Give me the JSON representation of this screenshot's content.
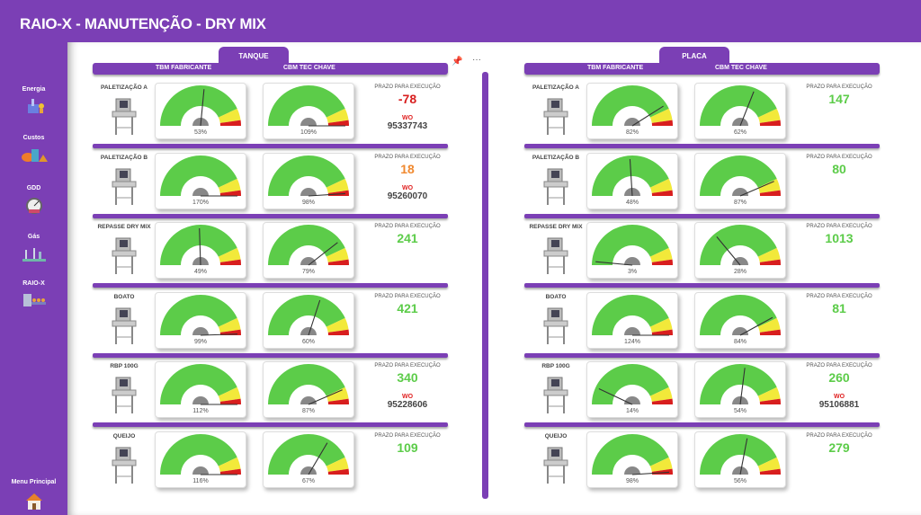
{
  "title": "RAIO-X - MANUTENÇÃO - DRY MIX",
  "nav": [
    {
      "label": "Energia",
      "icon": "energy-icon"
    },
    {
      "label": "Custos",
      "icon": "costs-icon"
    },
    {
      "label": "GDD",
      "icon": "speedometer-icon"
    },
    {
      "label": "Gás",
      "icon": "gas-plant-icon"
    },
    {
      "label": "RAIO-X",
      "icon": "xray-machine-icon"
    }
  ],
  "menu": {
    "label": "Menu Principal",
    "icon": "house-icon"
  },
  "colors": {
    "purple": "#7b3fb5",
    "green": "#5ccc49",
    "yellow": "#f2e93a",
    "red": "#d81e1e",
    "orange": "#f0892f",
    "needle": "#333333",
    "hub": "#888888"
  },
  "gauge_scale": {
    "min": 0,
    "max": 100,
    "unit": "%"
  },
  "prazo_label": "PRAZO PARA EXECUÇÃO",
  "wo_label": "WO",
  "panels": [
    {
      "tab": "TANQUE",
      "col1": "TBM FABRICANTE",
      "col2": "CBM TEC CHAVE",
      "rows": [
        {
          "name": "PALETIZAÇÃO A",
          "tbm": 53,
          "cbm": 109,
          "prazo": "-78",
          "prazo_color": "red",
          "wo": "95337743"
        },
        {
          "name": "PALETIZAÇÃO B",
          "tbm": 170,
          "cbm": 98,
          "prazo": "18",
          "prazo_color": "orange",
          "wo": "95260070"
        },
        {
          "name": "REPASSE DRY MIX",
          "tbm": 49,
          "cbm": 79,
          "prazo": "241",
          "prazo_color": "green"
        },
        {
          "name": "BOATO",
          "tbm": 99,
          "cbm": 60,
          "prazo": "421",
          "prazo_color": "green"
        },
        {
          "name": "RBP 100G",
          "tbm": 112,
          "cbm": 87,
          "prazo": "340",
          "prazo_color": "green",
          "wo": "95228606"
        },
        {
          "name": "QUEIJO",
          "tbm": 116,
          "cbm": 67,
          "prazo": "109",
          "prazo_color": "green"
        }
      ]
    },
    {
      "tab": "PLACA",
      "col1": "TBM FABRICANTE",
      "col2": "CBM TEC CHAVE",
      "rows": [
        {
          "name": "PALETIZAÇÃO A",
          "tbm": 82,
          "cbm": 62,
          "prazo": "147",
          "prazo_color": "green"
        },
        {
          "name": "PALETIZAÇÃO B",
          "tbm": 48,
          "cbm": 87,
          "prazo": "80",
          "prazo_color": "green"
        },
        {
          "name": "REPASSE DRY MIX",
          "tbm": 3,
          "cbm": 28,
          "prazo": "1013",
          "prazo_color": "green"
        },
        {
          "name": "BOATO",
          "tbm": 124,
          "cbm": 84,
          "prazo": "81",
          "prazo_color": "green"
        },
        {
          "name": "RBP 100G",
          "tbm": 14,
          "cbm": 54,
          "prazo": "260",
          "prazo_color": "green",
          "wo": "95106881"
        },
        {
          "name": "QUEIJO",
          "tbm": 98,
          "cbm": 56,
          "prazo": "279",
          "prazo_color": "green"
        }
      ]
    }
  ]
}
